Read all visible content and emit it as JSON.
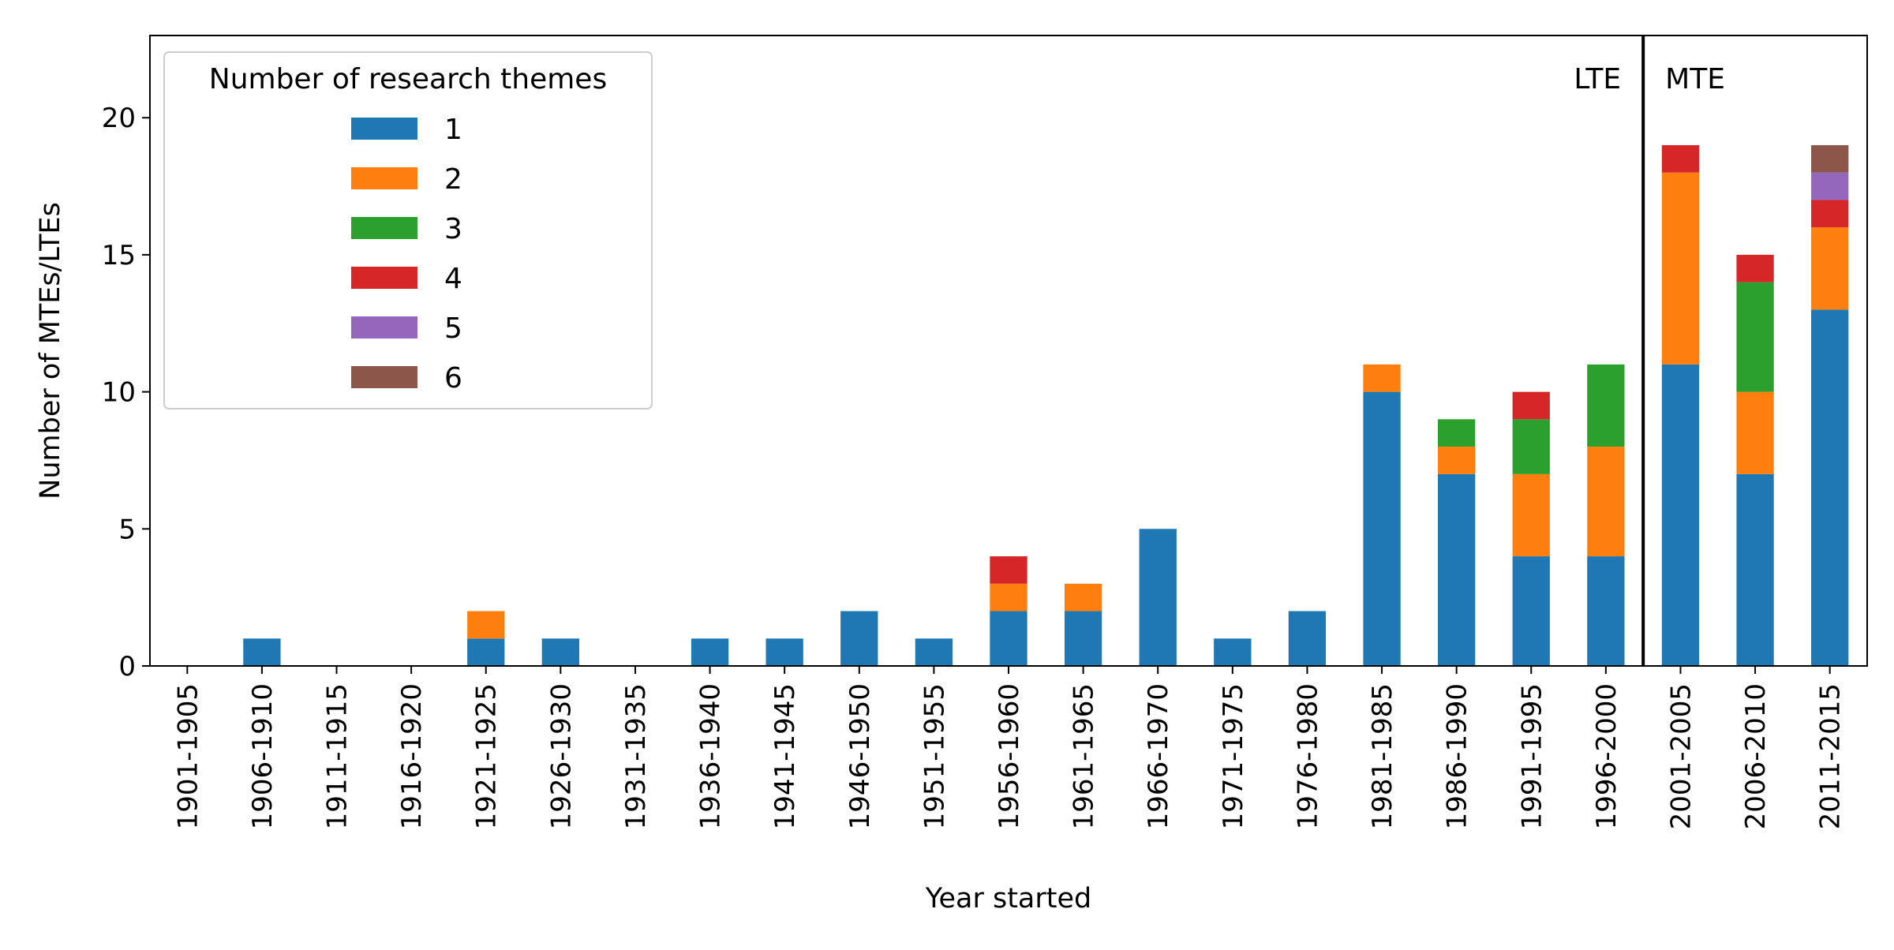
{
  "chart_data": {
    "type": "bar",
    "stacked": true,
    "xlabel": "Year started",
    "ylabel": "Number of MTEs/LTEs",
    "ylim": [
      0,
      23
    ],
    "yticks": [
      0,
      5,
      10,
      15,
      20
    ],
    "grid": false,
    "categories": [
      "1901-1905",
      "1906-1910",
      "1911-1915",
      "1916-1920",
      "1921-1925",
      "1926-1930",
      "1931-1935",
      "1936-1940",
      "1941-1945",
      "1946-1950",
      "1951-1955",
      "1956-1960",
      "1961-1965",
      "1966-1970",
      "1971-1975",
      "1976-1980",
      "1981-1985",
      "1986-1990",
      "1991-1995",
      "1996-2000",
      "2001-2005",
      "2006-2010",
      "2011-2015"
    ],
    "series": [
      {
        "name": "1",
        "color": "#1f77b4",
        "values": [
          0,
          1,
          0,
          0,
          1,
          1,
          0,
          1,
          1,
          2,
          1,
          2,
          2,
          5,
          1,
          2,
          10,
          7,
          4,
          4,
          11,
          7,
          13
        ]
      },
      {
        "name": "2",
        "color": "#ff7f0e",
        "values": [
          0,
          0,
          0,
          0,
          1,
          0,
          0,
          0,
          0,
          0,
          0,
          1,
          1,
          0,
          0,
          0,
          1,
          1,
          3,
          4,
          7,
          3,
          3
        ]
      },
      {
        "name": "3",
        "color": "#2ca02c",
        "values": [
          0,
          0,
          0,
          0,
          0,
          0,
          0,
          0,
          0,
          0,
          0,
          0,
          0,
          0,
          0,
          0,
          0,
          1,
          2,
          3,
          0,
          4,
          0
        ]
      },
      {
        "name": "4",
        "color": "#d62728",
        "values": [
          0,
          0,
          0,
          0,
          0,
          0,
          0,
          0,
          0,
          0,
          0,
          1,
          0,
          0,
          0,
          0,
          0,
          0,
          1,
          0,
          1,
          1,
          1
        ]
      },
      {
        "name": "5",
        "color": "#9467bd",
        "values": [
          0,
          0,
          0,
          0,
          0,
          0,
          0,
          0,
          0,
          0,
          0,
          0,
          0,
          0,
          0,
          0,
          0,
          0,
          0,
          0,
          0,
          0,
          1
        ]
      },
      {
        "name": "6",
        "color": "#8c564b",
        "values": [
          0,
          0,
          0,
          0,
          0,
          0,
          0,
          0,
          0,
          0,
          0,
          0,
          0,
          0,
          0,
          0,
          0,
          0,
          0,
          0,
          0,
          0,
          1
        ]
      }
    ],
    "legend": {
      "title": "Number of research themes",
      "placement": "upper-left"
    },
    "annotations": [
      {
        "text": "LTE",
        "side": "left of divider"
      },
      {
        "text": "MTE",
        "side": "right of divider"
      }
    ],
    "divider_between": [
      "1996-2000",
      "2001-2005"
    ]
  }
}
